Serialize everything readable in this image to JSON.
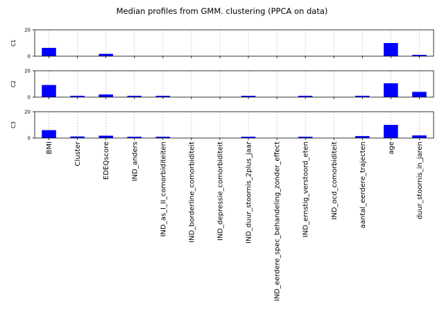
{
  "chart_data": {
    "type": "bar",
    "title": "Median profiles from GMM. clustering (PPCA on data)",
    "categories": [
      "BMI",
      "Cluster",
      "EDEQscore",
      "IND_anders",
      "IND_as_I_II_comorbiditeiten",
      "IND_borderline_comorbiditeit",
      "IND_depressie_comorbiditeit",
      "IND_duur_stoornis_2plus_jaar",
      "IND_eerdere_spec_behandeling_zonder_effect",
      "IND_ernstig_verstoord_eten",
      "IND_ocd_comorbiditeit",
      "aantal_eerdere_trajecten",
      "age",
      "duur_stoornis_in_jaren"
    ],
    "ylim": [
      0,
      20
    ],
    "yticks": [
      "0",
      "20"
    ],
    "grid": "vertical dashed",
    "bar_color": "#0000ff",
    "series": [
      {
        "name": "C1",
        "values": [
          6.3,
          0,
          1.8,
          0,
          0,
          0,
          0,
          0,
          0,
          0,
          0,
          0,
          10.0,
          1.0
        ]
      },
      {
        "name": "C2",
        "values": [
          9.2,
          1.0,
          2.0,
          1.0,
          1.0,
          0,
          0,
          1.0,
          0,
          1.0,
          0,
          1.0,
          10.5,
          4.0
        ]
      },
      {
        "name": "C3",
        "values": [
          6.0,
          1.2,
          1.8,
          1.0,
          1.0,
          0,
          0,
          1.0,
          0,
          1.0,
          0,
          1.5,
          10.0,
          2.0
        ]
      }
    ]
  }
}
